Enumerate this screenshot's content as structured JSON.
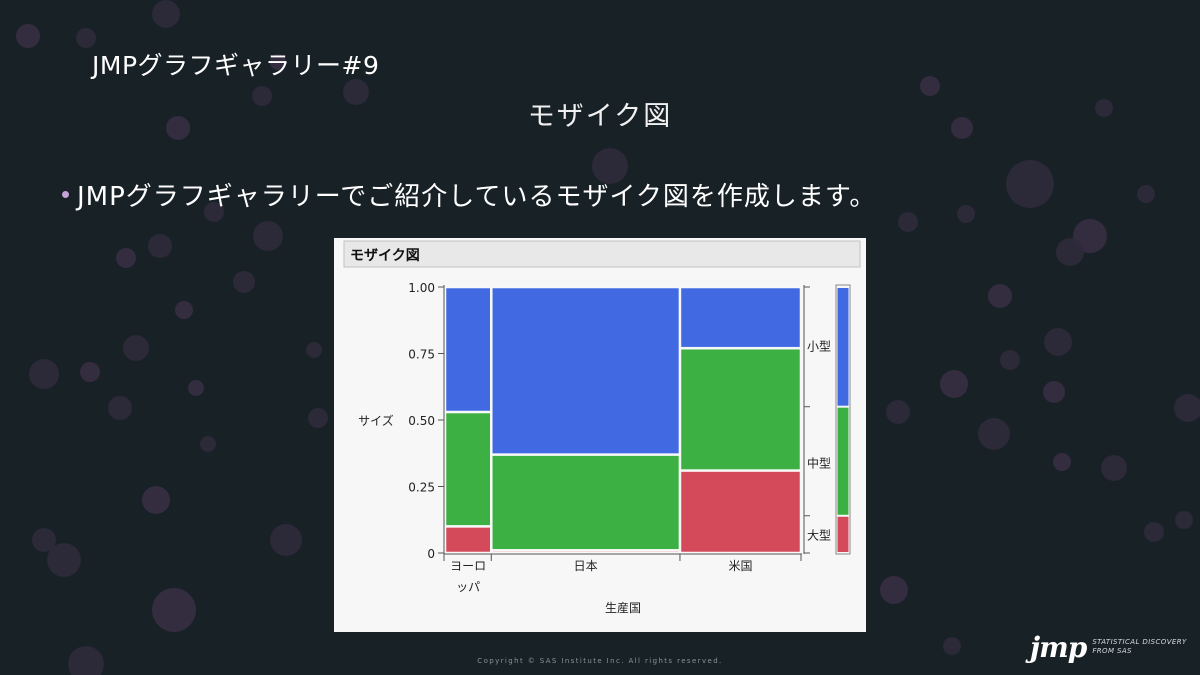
{
  "slide": {
    "title": "JMPグラフギャラリー#9",
    "subtitle": "モザイク図",
    "bullet": "JMPグラフギャラリーでご紹介しているモザイク図を作成します。",
    "copyright": "Copyright © SAS Institute Inc. All rights reserved."
  },
  "logo": {
    "mark": "jmp",
    "tag_line1": "STATISTICAL DISCOVERY",
    "tag_line2": "FROM SAS"
  },
  "colors": {
    "background": "#182126",
    "small": "#4169e1",
    "medium": "#3cb043",
    "large": "#d44a5a"
  },
  "chart_data": {
    "type": "mosaic",
    "title": "モザイク図",
    "xlabel": "生産国",
    "ylabel": "サイズ",
    "yticks": [
      "0",
      "0.25",
      "0.50",
      "0.75",
      "1.00"
    ],
    "ylim": [
      0,
      1
    ],
    "categories": [
      "ヨーロッパ",
      "日本",
      "米国"
    ],
    "category_labels": [
      [
        "ヨーロ",
        "ッパ"
      ],
      [
        "日本"
      ],
      [
        "米国"
      ]
    ],
    "category_widths": [
      0.13,
      0.53,
      0.34
    ],
    "series": [
      {
        "name": "大型",
        "values": [
          0.1,
          0.01,
          0.31
        ]
      },
      {
        "name": "中型",
        "values": [
          0.43,
          0.36,
          0.46
        ]
      },
      {
        "name": "小型",
        "values": [
          0.47,
          0.63,
          0.23
        ]
      }
    ],
    "marginal": [
      {
        "name": "大型",
        "value": 0.14
      },
      {
        "name": "中型",
        "value": 0.41
      },
      {
        "name": "小型",
        "value": 0.45
      }
    ],
    "right_axis_labels": [
      "小型",
      "中型",
      "大型"
    ]
  }
}
